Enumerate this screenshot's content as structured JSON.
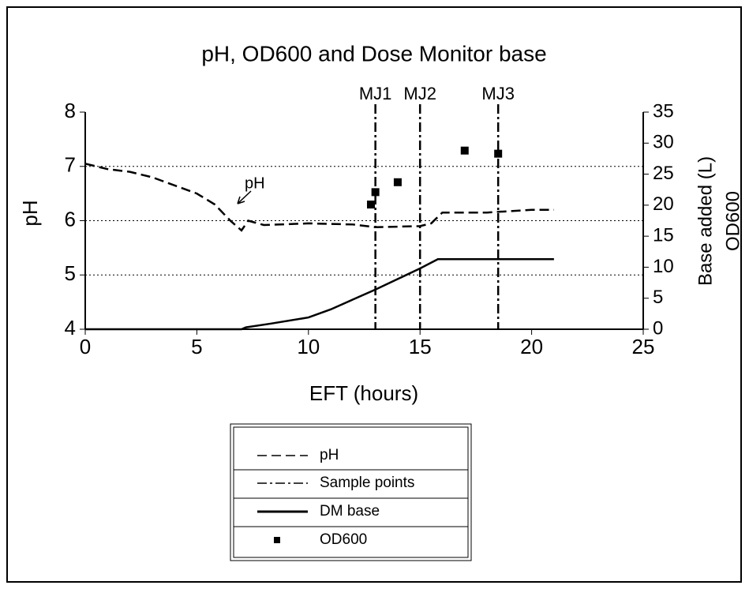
{
  "chart_data": {
    "type": "line",
    "title": "pH, OD600 and Dose Monitor base",
    "xlabel": "EFT (hours)",
    "ylabel": "pH",
    "y2label": "Base added (L)",
    "y2label2": "OD600",
    "xlim": [
      0,
      25
    ],
    "xticks": [
      0,
      5,
      10,
      15,
      20,
      25
    ],
    "ylim": [
      4,
      8
    ],
    "yticks": [
      4,
      5,
      6,
      7,
      8
    ],
    "y2lim": [
      0,
      35
    ],
    "y2ticks": [
      0,
      5,
      10,
      15,
      20,
      25,
      30,
      35
    ],
    "grid": true,
    "annotation": "pH",
    "series": [
      {
        "name": "pH",
        "color": "#000000",
        "style": "dashed",
        "axis": "y",
        "x": [
          0,
          1,
          2,
          3,
          4,
          5,
          5.8,
          6.5,
          7,
          7.3,
          8,
          10,
          12,
          13,
          15,
          15.5,
          16,
          18,
          20,
          21
        ],
        "values": [
          7.05,
          6.95,
          6.9,
          6.8,
          6.65,
          6.5,
          6.3,
          6.0,
          5.82,
          6.0,
          5.92,
          5.95,
          5.93,
          5.88,
          5.9,
          5.95,
          6.15,
          6.15,
          6.2,
          6.2
        ]
      },
      {
        "name": "DM base",
        "color": "#000000",
        "style": "solid",
        "axis": "y2",
        "x": [
          0,
          7,
          7.2,
          8.3,
          10,
          11,
          12,
          13,
          14,
          15,
          15.8,
          21
        ],
        "values": [
          0,
          0,
          0.3,
          0.9,
          1.9,
          3.2,
          4.8,
          6.4,
          8.1,
          9.8,
          11.3,
          11.3
        ]
      },
      {
        "name": "OD600",
        "color": "#000000",
        "style": "marker",
        "axis": "y2",
        "x": [
          12.8,
          13,
          14,
          17,
          18.5
        ],
        "values": [
          20.1,
          22.1,
          23.7,
          28.8,
          28.3
        ]
      }
    ],
    "sample_points": {
      "name": "Sample points",
      "x": [
        13,
        15,
        18.5
      ],
      "labels": [
        "MJ1",
        "MJ2",
        "MJ3"
      ]
    }
  }
}
